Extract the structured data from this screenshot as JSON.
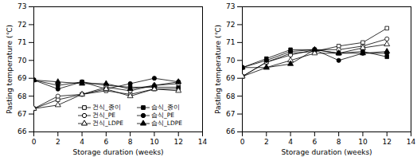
{
  "chart_data": [
    {
      "type": "line",
      "xlabel": "Storage duration (weeks)",
      "ylabel": "Pasting temperature (℃)",
      "x": [
        0,
        2,
        4,
        6,
        8,
        10,
        12
      ],
      "xlim": [
        0,
        14
      ],
      "xticks": [
        0,
        2,
        4,
        6,
        8,
        10,
        12,
        14
      ],
      "ylim": [
        66,
        73
      ],
      "yticks": [
        66,
        67,
        68,
        69,
        70,
        71,
        72,
        73
      ],
      "legend": "lower right",
      "series": [
        {
          "name": "건식_종이",
          "color": "#000000",
          "marker": "square-open",
          "values": [
            67.3,
            67.8,
            68.1,
            68.3,
            68.1,
            68.4,
            68.4
          ]
        },
        {
          "name": "습식_종이",
          "color": "#000000",
          "marker": "square",
          "values": [
            68.9,
            68.6,
            68.8,
            68.6,
            68.5,
            68.5,
            68.5
          ]
        },
        {
          "name": "건식_PE",
          "color": "#000000",
          "marker": "circle-open",
          "values": [
            67.3,
            68.0,
            68.1,
            68.5,
            68.3,
            68.6,
            68.7
          ]
        },
        {
          "name": "습식_PE",
          "color": "#000000",
          "marker": "circle",
          "values": [
            68.9,
            68.4,
            68.8,
            68.4,
            68.7,
            69.0,
            68.8
          ]
        },
        {
          "name": "건식_LDPE",
          "color": "#000000",
          "marker": "triangle-open",
          "values": [
            67.3,
            67.5,
            68.1,
            68.4,
            68.0,
            68.4,
            68.3
          ]
        },
        {
          "name": "습식_LDPE",
          "color": "#000000",
          "marker": "triangle",
          "values": [
            68.9,
            68.8,
            68.7,
            68.7,
            68.4,
            68.6,
            68.8
          ]
        }
      ]
    },
    {
      "type": "line",
      "xlabel": "Storage duration (weeks)",
      "ylabel": "Pasting temperature (℃)",
      "x": [
        0,
        2,
        4,
        6,
        8,
        10,
        12
      ],
      "xlim": [
        0,
        14
      ],
      "xticks": [
        0,
        2,
        4,
        6,
        8,
        10,
        12,
        14
      ],
      "ylim": [
        66,
        73
      ],
      "yticks": [
        66,
        67,
        68,
        69,
        70,
        71,
        72,
        73
      ],
      "series": [
        {
          "name": "건식_종이",
          "color": "#000000",
          "marker": "square-open",
          "values": [
            69.1,
            69.9,
            70.4,
            70.5,
            70.8,
            71.0,
            71.8
          ]
        },
        {
          "name": "습식_종이",
          "color": "#000000",
          "marker": "square",
          "values": [
            69.6,
            70.1,
            70.6,
            70.6,
            70.4,
            70.5,
            70.2
          ]
        },
        {
          "name": "건식_PE",
          "color": "#000000",
          "marker": "circle-open",
          "values": [
            69.1,
            69.9,
            70.3,
            70.6,
            70.6,
            70.8,
            71.2
          ]
        },
        {
          "name": "습식_PE",
          "color": "#000000",
          "marker": "circle",
          "values": [
            69.6,
            70.0,
            70.5,
            70.6,
            70.0,
            70.4,
            70.4
          ]
        },
        {
          "name": "건식_LDPE",
          "color": "#000000",
          "marker": "triangle-open",
          "values": [
            69.1,
            69.6,
            70.0,
            70.4,
            70.4,
            70.7,
            70.9
          ]
        },
        {
          "name": "습식_LDPE",
          "color": "#000000",
          "marker": "triangle",
          "values": [
            69.6,
            69.6,
            69.8,
            70.6,
            70.4,
            70.4,
            70.5
          ]
        }
      ]
    }
  ]
}
